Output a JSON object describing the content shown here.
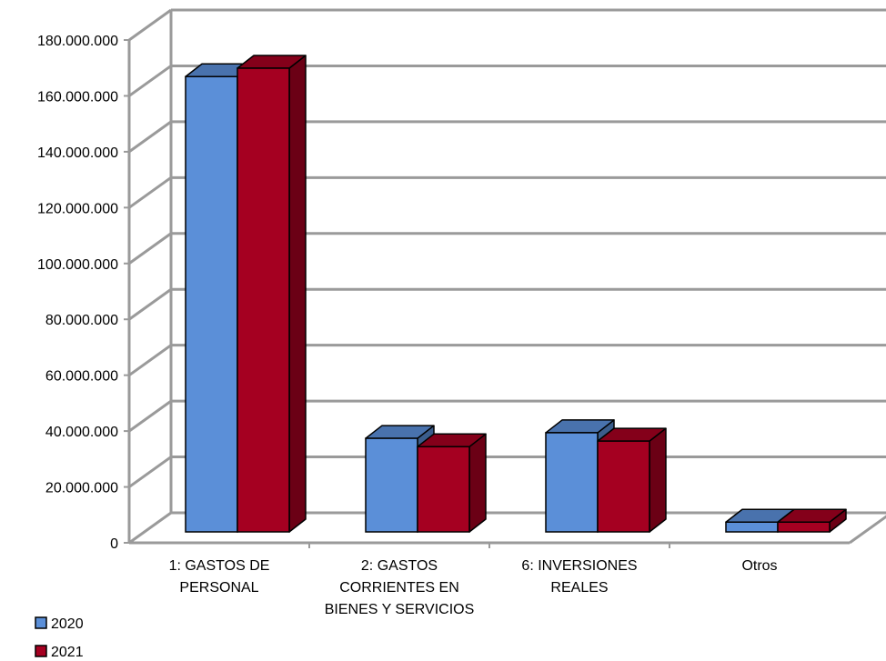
{
  "chart_data": {
    "type": "bar",
    "categories": [
      [
        "1: GASTOS DE",
        "PERSONAL"
      ],
      [
        "2: GASTOS",
        "CORRIENTES EN",
        "BIENES Y SERVICIOS"
      ],
      [
        "6: INVERSIONES",
        "REALES"
      ],
      [
        "Otros"
      ]
    ],
    "series": [
      {
        "name": "2020",
        "values": [
          163000000,
          33500000,
          35500000,
          3500000
        ],
        "color": "#5B8FD8"
      },
      {
        "name": "2021",
        "values": [
          166000000,
          30500000,
          32500000,
          3500000
        ],
        "color": "#A50021"
      }
    ],
    "yticks": [
      "0",
      "20.000.000",
      "40.000.000",
      "60.000.000",
      "80.000.000",
      "100.000.000",
      "120.000.000",
      "140.000.000",
      "160.000.000",
      "180.000.000"
    ],
    "ylim": [
      0,
      180000000
    ],
    "grid": true,
    "legend_position": "bottom-left"
  }
}
